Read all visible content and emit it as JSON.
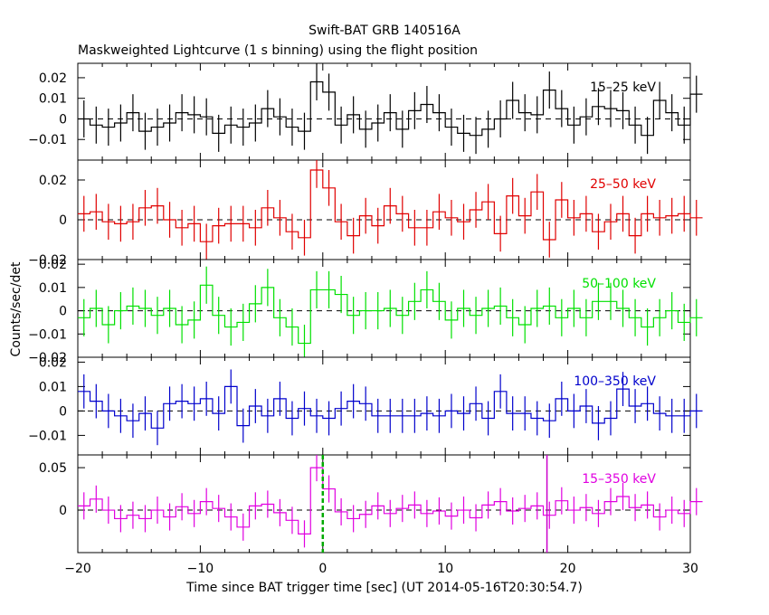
{
  "chart_data": {
    "type": "line",
    "title": "Swift-BAT GRB 140516A",
    "subtitle": "Maskweighted Lightcurve (1 s binning) using the flight position",
    "xlabel": "Time since BAT trigger time [sec] (UT 2014-05-16T20:30:54.7)",
    "ylabel": "Counts/sec/det",
    "xlim": [
      -20,
      30
    ],
    "x_ticks": [
      "−20",
      "−10",
      "0",
      "10",
      "20",
      "30"
    ],
    "x_start": -20,
    "bin_width": 1,
    "panels": [
      {
        "name": "15–25 keV",
        "color": "#000000",
        "ylim": [
          -0.02,
          0.027
        ],
        "yticks": [
          0.02,
          0.01,
          0,
          -0.01
        ],
        "ytick_labels": [
          "0.02",
          "0.01",
          "0",
          "−0.01"
        ],
        "err": 0.009,
        "values": [
          0.0,
          -0.003,
          -0.004,
          -0.002,
          0.003,
          -0.006,
          -0.004,
          -0.002,
          0.003,
          0.002,
          0.001,
          -0.007,
          -0.003,
          -0.004,
          -0.002,
          0.005,
          0.001,
          -0.004,
          -0.006,
          0.018,
          0.013,
          -0.003,
          0.002,
          -0.005,
          -0.002,
          0.003,
          -0.005,
          0.004,
          0.007,
          0.003,
          -0.004,
          -0.007,
          -0.008,
          -0.005,
          0.0,
          0.009,
          0.003,
          0.002,
          0.014,
          0.005,
          -0.003,
          0.001,
          0.006,
          0.005,
          0.004,
          -0.003,
          -0.008,
          0.009,
          0.003,
          -0.003,
          0.012
        ]
      },
      {
        "name": "25–50 keV",
        "color": "#e00000",
        "ylim": [
          -0.02,
          0.03
        ],
        "yticks": [
          0.02,
          0,
          -0.02
        ],
        "ytick_labels": [
          "0.02",
          "0",
          "−0.02"
        ],
        "err": 0.009,
        "values": [
          0.003,
          0.004,
          -0.001,
          -0.002,
          -0.001,
          0.006,
          0.007,
          0.0,
          -0.004,
          -0.002,
          -0.011,
          -0.003,
          -0.002,
          -0.002,
          -0.004,
          0.006,
          0.001,
          -0.006,
          -0.009,
          0.025,
          0.016,
          -0.001,
          -0.008,
          0.002,
          -0.003,
          0.007,
          0.003,
          -0.004,
          -0.004,
          0.004,
          0.001,
          -0.001,
          0.005,
          0.009,
          -0.007,
          0.012,
          0.002,
          0.014,
          -0.01,
          0.01,
          0.001,
          0.003,
          -0.006,
          -0.001,
          0.003,
          -0.008,
          0.003,
          0.001,
          0.002,
          0.003,
          0.001
        ]
      },
      {
        "name": "50–100 keV",
        "color": "#00e000",
        "ylim": [
          -0.02,
          0.022
        ],
        "yticks": [
          0.02,
          0.01,
          0,
          -0.01,
          -0.02
        ],
        "ytick_labels": [
          "0.02",
          "0.01",
          "0",
          "−0.01",
          "−0.02"
        ],
        "err": 0.008,
        "values": [
          -0.003,
          0.001,
          -0.006,
          0.0,
          0.002,
          0.001,
          -0.002,
          0.001,
          -0.006,
          -0.004,
          0.011,
          -0.002,
          -0.007,
          -0.005,
          0.003,
          0.01,
          -0.003,
          -0.007,
          -0.014,
          0.009,
          0.009,
          0.007,
          -0.002,
          0.0,
          0.0,
          0.001,
          -0.002,
          0.004,
          0.009,
          0.004,
          -0.004,
          0.001,
          -0.002,
          0.001,
          0.002,
          -0.003,
          -0.006,
          0.001,
          0.002,
          -0.003,
          0.001,
          -0.003,
          0.004,
          0.004,
          0.001,
          -0.003,
          -0.007,
          -0.003,
          0.0,
          -0.005,
          -0.003
        ]
      },
      {
        "name": "100–350 keV",
        "color": "#0000cc",
        "ylim": [
          -0.018,
          0.022
        ],
        "yticks": [
          0.02,
          0.01,
          0,
          -0.01
        ],
        "ytick_labels": [
          "0.02",
          "0.01",
          "0",
          "−0.01"
        ],
        "err": 0.007,
        "values": [
          0.008,
          0.004,
          0.0,
          -0.002,
          -0.004,
          -0.001,
          -0.007,
          0.003,
          0.004,
          0.003,
          0.005,
          -0.001,
          0.01,
          -0.006,
          0.002,
          -0.002,
          0.005,
          -0.003,
          0.001,
          -0.002,
          -0.003,
          0.001,
          0.004,
          0.003,
          -0.002,
          -0.002,
          -0.002,
          -0.002,
          -0.001,
          -0.002,
          0.0,
          -0.001,
          0.003,
          -0.003,
          0.008,
          -0.001,
          -0.001,
          -0.003,
          -0.004,
          0.005,
          0.0,
          0.002,
          -0.005,
          -0.003,
          0.009,
          0.002,
          0.003,
          -0.001,
          -0.002,
          -0.002,
          0.0
        ]
      },
      {
        "name": "15–350 keV",
        "color": "#e000e0",
        "ylim": [
          -0.05,
          0.065
        ],
        "yticks": [
          0.05,
          0
        ],
        "ytick_labels": [
          "0.05",
          "0"
        ],
        "err": 0.016,
        "values": [
          0.005,
          0.013,
          0.0,
          -0.01,
          -0.006,
          -0.01,
          0.0,
          -0.008,
          0.004,
          -0.004,
          0.01,
          0.002,
          -0.008,
          -0.02,
          0.005,
          0.007,
          -0.003,
          -0.012,
          -0.028,
          0.05,
          0.025,
          -0.002,
          -0.01,
          -0.005,
          0.005,
          -0.004,
          0.002,
          0.006,
          -0.004,
          -0.001,
          -0.007,
          0.0,
          -0.009,
          0.006,
          0.01,
          -0.001,
          0.002,
          0.005,
          -0.006,
          0.011,
          0.0,
          0.003,
          -0.004,
          0.01,
          0.016,
          0.003,
          0.006,
          -0.008,
          0.0,
          -0.004,
          0.01
        ]
      }
    ],
    "trigger_marker_x": 0,
    "trigger_marker_color": "#00aa00",
    "event_marker_x": 18.3,
    "event_marker_color": "#cc00cc"
  }
}
